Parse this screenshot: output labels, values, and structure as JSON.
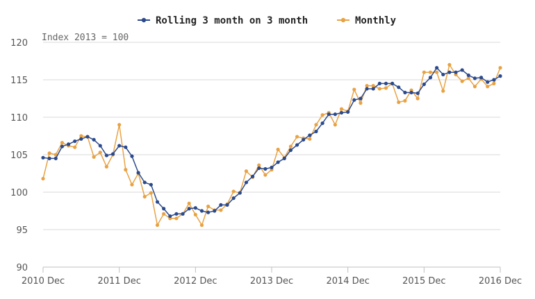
{
  "chart_data": {
    "type": "line",
    "subtitle": "Index 2013 = 100",
    "legend_position": "top-center",
    "grid": true,
    "ylim": [
      90,
      120
    ],
    "yticks": [
      90,
      95,
      100,
      105,
      110,
      115,
      120
    ],
    "xticks": [
      {
        "label": "2010 Dec",
        "x": 0
      },
      {
        "label": "2011 Dec",
        "x": 12
      },
      {
        "label": "2012 Dec",
        "x": 24
      },
      {
        "label": "2013 Dec",
        "x": 36
      },
      {
        "label": "2014 Dec",
        "x": 48
      },
      {
        "label": "2015 Dec",
        "x": 60
      },
      {
        "label": "2016 Dec",
        "x": 72
      }
    ],
    "xlim": [
      0,
      72
    ],
    "series": [
      {
        "name": "Rolling 3 month on 3 month",
        "color": "#2b4a8c",
        "values": [
          104.6,
          104.5,
          104.5,
          106.1,
          106.4,
          106.8,
          107.1,
          107.4,
          107.0,
          106.2,
          104.9,
          105.1,
          106.2,
          106.0,
          104.8,
          102.6,
          101.3,
          101.0,
          98.7,
          97.8,
          96.8,
          97.1,
          97.1,
          97.8,
          97.9,
          97.5,
          97.3,
          97.5,
          98.3,
          98.3,
          99.2,
          99.9,
          101.3,
          102.1,
          103.2,
          103.1,
          103.3,
          104.0,
          104.5,
          105.6,
          106.3,
          107.0,
          107.6,
          108.1,
          109.2,
          110.4,
          110.4,
          110.6,
          110.7,
          112.3,
          112.5,
          113.8,
          113.8,
          114.5,
          114.5,
          114.5,
          114.0,
          113.3,
          113.3,
          113.2,
          114.4,
          115.3,
          116.6,
          115.7,
          116.0,
          116.0,
          116.3,
          115.6,
          115.2,
          115.3,
          114.7,
          115.0,
          115.5
        ]
      },
      {
        "name": "Monthly",
        "color": "#e8a243",
        "values": [
          101.8,
          105.2,
          105.0,
          106.6,
          106.2,
          106.0,
          107.5,
          107.4,
          104.7,
          105.3,
          103.4,
          105.0,
          109.0,
          103.0,
          101.0,
          102.5,
          99.4,
          99.9,
          95.6,
          97.1,
          96.5,
          96.5,
          97.1,
          98.5,
          97.0,
          95.6,
          98.1,
          97.6,
          97.6,
          98.4,
          100.1,
          99.9,
          102.8,
          102.0,
          103.6,
          102.3,
          103.0,
          105.7,
          104.6,
          106.1,
          107.4,
          107.2,
          107.1,
          109.0,
          110.3,
          110.6,
          109.0,
          111.1,
          110.8,
          113.7,
          111.9,
          114.2,
          114.2,
          113.8,
          113.9,
          114.5,
          112.0,
          112.2,
          113.6,
          112.5,
          116.0,
          116.0,
          116.0,
          113.5,
          117.0,
          115.7,
          114.8,
          115.2,
          114.1,
          115.1,
          114.1,
          114.5,
          116.6
        ]
      }
    ]
  }
}
